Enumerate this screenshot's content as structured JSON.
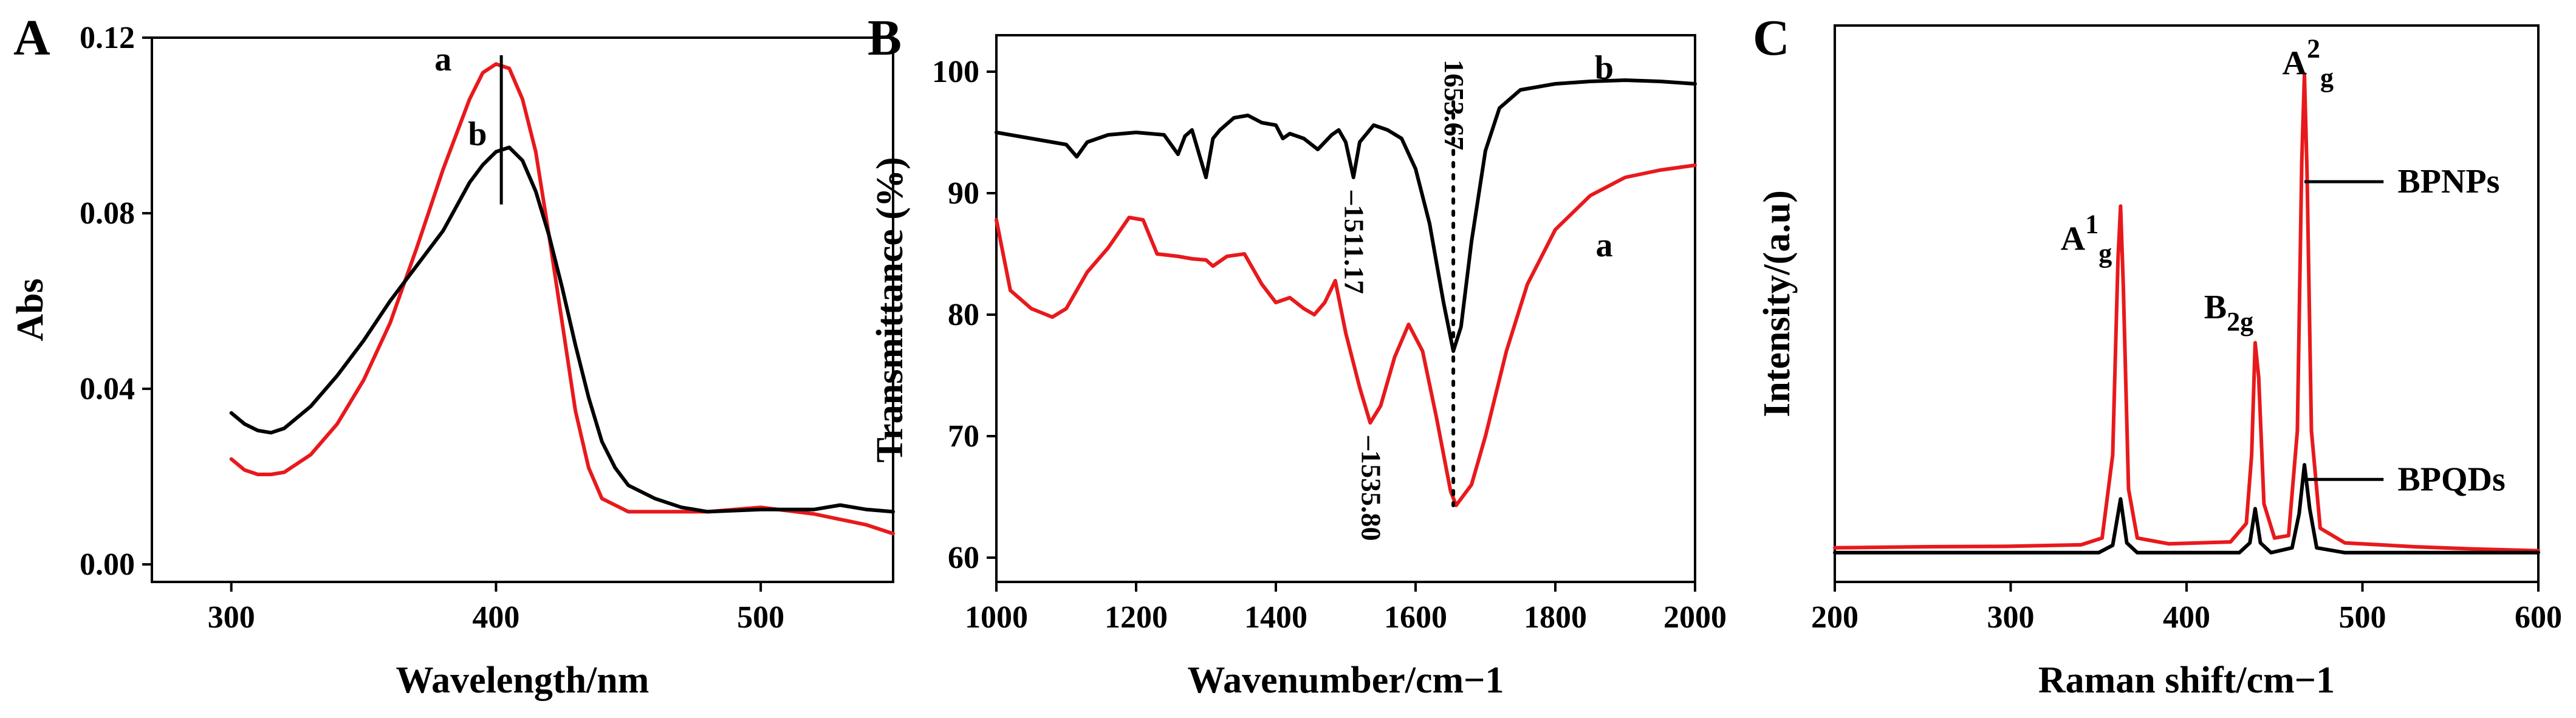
{
  "figure": {
    "panels": [
      "A",
      "B",
      "C"
    ]
  },
  "colors": {
    "a": "#e8191c",
    "b": "#000000"
  },
  "chart_data": [
    {
      "id": "A",
      "type": "line",
      "panel_label": "A",
      "xlabel": "Wavelength/nm",
      "ylabel": "Abs",
      "xlim": [
        270,
        550
      ],
      "ylim": [
        -0.004,
        0.12
      ],
      "xticks": [
        300,
        400,
        500
      ],
      "yticks": [
        0.0,
        0.04,
        0.08,
        0.12
      ],
      "ytick_labels": [
        "0.00",
        "0.04",
        "0.08",
        "0.12"
      ],
      "series": [
        {
          "name": "a",
          "color": "#e8191c",
          "x": [
            300,
            305,
            310,
            315,
            320,
            330,
            340,
            350,
            360,
            370,
            380,
            390,
            395,
            400,
            405,
            410,
            415,
            420,
            425,
            430,
            435,
            440,
            450,
            460,
            480,
            500,
            520,
            540,
            550
          ],
          "y": [
            0.024,
            0.0215,
            0.0205,
            0.0205,
            0.021,
            0.025,
            0.032,
            0.042,
            0.055,
            0.072,
            0.09,
            0.106,
            0.112,
            0.114,
            0.113,
            0.106,
            0.094,
            0.075,
            0.055,
            0.035,
            0.022,
            0.015,
            0.012,
            0.012,
            0.012,
            0.013,
            0.0115,
            0.009,
            0.007
          ]
        },
        {
          "name": "b",
          "color": "#000000",
          "x": [
            300,
            305,
            310,
            315,
            320,
            330,
            340,
            350,
            360,
            370,
            380,
            390,
            395,
            400,
            405,
            410,
            415,
            420,
            425,
            430,
            435,
            440,
            445,
            450,
            460,
            470,
            480,
            500,
            520,
            530,
            540,
            550
          ],
          "y": [
            0.0345,
            0.032,
            0.0305,
            0.03,
            0.031,
            0.036,
            0.043,
            0.051,
            0.06,
            0.068,
            0.076,
            0.087,
            0.091,
            0.094,
            0.095,
            0.092,
            0.085,
            0.075,
            0.063,
            0.05,
            0.038,
            0.028,
            0.022,
            0.018,
            0.015,
            0.013,
            0.012,
            0.0125,
            0.0125,
            0.0135,
            0.0125,
            0.012
          ]
        }
      ],
      "annotations": [
        {
          "text": "a",
          "x": 380,
          "y": 0.1125
        },
        {
          "text": "b",
          "x": 393,
          "y": 0.0955
        }
      ],
      "marker_line": {
        "x": 402,
        "y_from": 0.082,
        "y_to": 0.116
      }
    },
    {
      "id": "B",
      "type": "line",
      "panel_label": "B",
      "xlabel": "Wavenumber/cm−1",
      "ylabel": "Transmittance (%)",
      "xlim": [
        1000,
        2000
      ],
      "ylim": [
        58,
        103
      ],
      "xticks": [
        1000,
        1200,
        1400,
        1600,
        1800,
        2000
      ],
      "yticks": [
        60,
        70,
        80,
        90,
        100
      ],
      "series": [
        {
          "name": "b",
          "color": "#000000",
          "x": [
            1000,
            1050,
            1100,
            1115,
            1130,
            1160,
            1200,
            1240,
            1260,
            1270,
            1280,
            1300,
            1310,
            1320,
            1340,
            1360,
            1380,
            1400,
            1410,
            1420,
            1440,
            1460,
            1480,
            1490,
            1500,
            1511,
            1520,
            1540,
            1560,
            1580,
            1600,
            1620,
            1640,
            1654,
            1665,
            1680,
            1700,
            1720,
            1750,
            1800,
            1850,
            1900,
            1950,
            2000
          ],
          "y": [
            95,
            94.5,
            94,
            93,
            94.2,
            94.8,
            95,
            94.8,
            93.2,
            94.7,
            95.2,
            91.3,
            94.5,
            95.2,
            96.2,
            96.4,
            95.8,
            95.6,
            94.5,
            94.9,
            94.5,
            93.6,
            94.8,
            95.2,
            94.2,
            91.3,
            94.2,
            95.6,
            95.2,
            94.5,
            92,
            87.5,
            81,
            77,
            79,
            86,
            93.5,
            97,
            98.5,
            99,
            99.2,
            99.3,
            99.2,
            99
          ]
        },
        {
          "name": "a",
          "color": "#e8191c",
          "x": [
            1000,
            1020,
            1050,
            1080,
            1100,
            1130,
            1160,
            1190,
            1210,
            1230,
            1260,
            1280,
            1300,
            1310,
            1330,
            1355,
            1380,
            1400,
            1420,
            1440,
            1455,
            1470,
            1485,
            1500,
            1520,
            1535,
            1550,
            1570,
            1590,
            1610,
            1630,
            1650,
            1658,
            1680,
            1700,
            1730,
            1760,
            1800,
            1850,
            1900,
            1950,
            2000
          ],
          "y": [
            87.8,
            82,
            80.5,
            79.8,
            80.5,
            83.5,
            85.5,
            88,
            87.8,
            85,
            84.8,
            84.6,
            84.5,
            84,
            84.8,
            85,
            82.5,
            81,
            81.4,
            80.5,
            80,
            81,
            82.8,
            78.5,
            74,
            71.1,
            72.5,
            76.5,
            79.2,
            77,
            71.5,
            65.5,
            64.3,
            66,
            70,
            77,
            82.5,
            87,
            89.8,
            91.3,
            91.9,
            92.3
          ]
        }
      ],
      "annotations": [
        {
          "text": "b",
          "x": 1870,
          "y": 99.4,
          "kind": "series"
        },
        {
          "text": "a",
          "x": 1870,
          "y": 84.8,
          "kind": "series"
        },
        {
          "text": "1511.17",
          "x": 1511,
          "y": 91.3,
          "kind": "peak"
        },
        {
          "text": "1535.80",
          "x": 1535,
          "y": 71.1,
          "kind": "peak"
        },
        {
          "text": "1653.67",
          "x": 1654,
          "y": 77.0,
          "kind": "peak"
        }
      ],
      "dotted_line": {
        "x": 1654,
        "y_from": 97.5,
        "y_to": 64.3
      }
    },
    {
      "id": "C",
      "type": "line",
      "panel_label": "C",
      "xlabel": "Raman shift/cm−1",
      "ylabel": "Intensity/(a.u)",
      "xlim": [
        200,
        600
      ],
      "ylim": [
        -0.06,
        1.08
      ],
      "xticks": [
        200,
        300,
        400,
        500,
        600
      ],
      "series": [
        {
          "name": "BPNPs",
          "color": "#e8191c",
          "x": [
            200,
            250,
            300,
            340,
            352,
            358,
            361,
            362.5,
            364,
            367,
            372,
            390,
            425,
            434,
            437,
            439,
            441,
            444,
            450,
            458,
            463,
            465.5,
            467,
            468.5,
            471,
            476,
            490,
            530,
            560,
            600
          ],
          "y": [
            0.01,
            0.012,
            0.013,
            0.016,
            0.03,
            0.2,
            0.6,
            0.71,
            0.55,
            0.13,
            0.03,
            0.018,
            0.022,
            0.06,
            0.2,
            0.43,
            0.36,
            0.1,
            0.03,
            0.035,
            0.25,
            0.8,
            0.98,
            0.78,
            0.25,
            0.05,
            0.02,
            0.012,
            0.008,
            0.004
          ]
        },
        {
          "name": "BPQDs",
          "color": "#000000",
          "x": [
            200,
            300,
            350,
            358,
            362.5,
            366,
            372,
            430,
            436,
            439,
            442,
            448,
            460,
            464,
            467,
            470,
            474,
            490,
            600
          ],
          "y": [
            0.0,
            0.0,
            0.0,
            0.015,
            0.11,
            0.02,
            0.0,
            0.0,
            0.02,
            0.09,
            0.02,
            0.0,
            0.01,
            0.08,
            0.18,
            0.09,
            0.01,
            0.0,
            0.0
          ]
        }
      ],
      "annotations": [
        {
          "text": "BPNPs",
          "x": 520,
          "y": 0.76,
          "kind": "legend"
        },
        {
          "text": "BPQDs",
          "x": 520,
          "y": 0.15,
          "kind": "legend"
        },
        {
          "text": "A",
          "sup": "1",
          "sub": "g",
          "x": 343,
          "y": 0.62,
          "kind": "peak"
        },
        {
          "text": "B",
          "sub": "2g",
          "x": 424,
          "y": 0.48,
          "kind": "peak"
        },
        {
          "text": "A",
          "sup": "2",
          "sub": "g",
          "x": 469,
          "y": 0.98,
          "kind": "peak"
        }
      ],
      "legend_lines": [
        {
          "label": "BPNPs",
          "x_from": 467,
          "x_to": 512,
          "y": 0.76
        },
        {
          "label": "BPQDs",
          "x_from": 467,
          "x_to": 512,
          "y": 0.15
        }
      ]
    }
  ]
}
